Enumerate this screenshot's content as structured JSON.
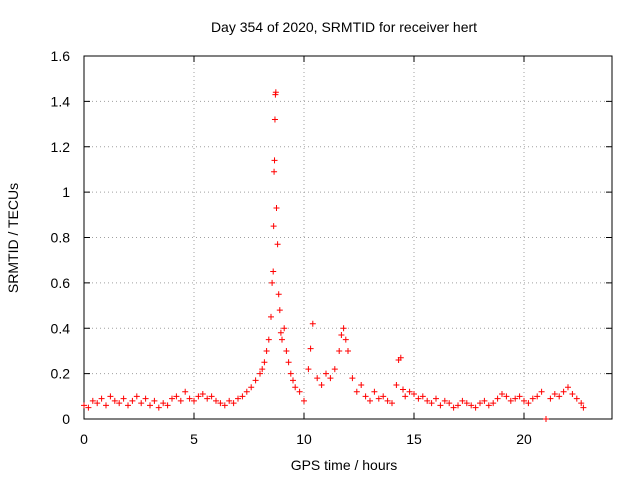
{
  "chart_data": {
    "type": "scatter",
    "title": "Day 354 of 2020, SRMTID for receiver hert",
    "xlabel": "GPS time / hours",
    "ylabel": "SRMTID / TECUs",
    "xlim": [
      0,
      24
    ],
    "ylim": [
      0,
      1.6
    ],
    "x_ticks": [
      "0",
      "5",
      "10",
      "15",
      "20"
    ],
    "y_ticks": [
      "0",
      "0.2",
      "0.4",
      "0.6",
      "0.8",
      "1",
      "1.2",
      "1.4",
      "1.6"
    ],
    "grid": true,
    "marker": "+",
    "colors": {
      "series": "#ff0000",
      "grid": "#a0a0a0",
      "axis": "#000000"
    },
    "series": [
      {
        "name": "SRMTID",
        "x": [
          0.0,
          0.2,
          0.4,
          0.6,
          0.8,
          1.0,
          1.2,
          1.4,
          1.6,
          1.8,
          2.0,
          2.2,
          2.4,
          2.6,
          2.8,
          3.0,
          3.2,
          3.4,
          3.6,
          3.8,
          4.0,
          4.2,
          4.4,
          4.6,
          4.8,
          5.0,
          5.2,
          5.4,
          5.6,
          5.8,
          6.0,
          6.2,
          6.4,
          6.6,
          6.8,
          7.0,
          7.2,
          7.4,
          7.6,
          7.8,
          8.0,
          8.1,
          8.2,
          8.3,
          8.4,
          8.5,
          8.55,
          8.6,
          8.62,
          8.64,
          8.66,
          8.68,
          8.7,
          8.72,
          8.75,
          8.8,
          8.85,
          8.9,
          8.95,
          9.0,
          9.1,
          9.2,
          9.3,
          9.4,
          9.5,
          9.6,
          9.8,
          10.0,
          10.2,
          10.3,
          10.4,
          10.6,
          10.8,
          11.0,
          11.2,
          11.4,
          11.6,
          11.7,
          11.8,
          11.9,
          12.0,
          12.2,
          12.4,
          12.6,
          12.8,
          13.0,
          13.2,
          13.4,
          13.6,
          13.8,
          14.0,
          14.2,
          14.3,
          14.4,
          14.5,
          14.6,
          14.8,
          15.0,
          15.2,
          15.4,
          15.6,
          15.8,
          16.0,
          16.2,
          16.4,
          16.6,
          16.8,
          17.0,
          17.2,
          17.4,
          17.6,
          17.8,
          18.0,
          18.2,
          18.4,
          18.6,
          18.8,
          19.0,
          19.2,
          19.4,
          19.6,
          19.8,
          20.0,
          20.2,
          20.4,
          20.6,
          20.8,
          21.0,
          21.2,
          21.4,
          21.6,
          21.8,
          22.0,
          22.2,
          22.4,
          22.6,
          22.7
        ],
        "y": [
          0.06,
          0.05,
          0.08,
          0.07,
          0.09,
          0.06,
          0.1,
          0.08,
          0.07,
          0.09,
          0.06,
          0.08,
          0.1,
          0.07,
          0.09,
          0.06,
          0.08,
          0.05,
          0.07,
          0.06,
          0.09,
          0.1,
          0.08,
          0.12,
          0.09,
          0.08,
          0.1,
          0.11,
          0.09,
          0.1,
          0.08,
          0.07,
          0.06,
          0.08,
          0.07,
          0.09,
          0.1,
          0.12,
          0.14,
          0.17,
          0.2,
          0.22,
          0.25,
          0.3,
          0.35,
          0.45,
          0.6,
          0.65,
          0.85,
          1.09,
          1.14,
          1.32,
          1.43,
          1.44,
          0.93,
          0.77,
          0.55,
          0.48,
          0.38,
          0.35,
          0.4,
          0.3,
          0.25,
          0.2,
          0.17,
          0.14,
          0.12,
          0.08,
          0.22,
          0.31,
          0.42,
          0.18,
          0.15,
          0.2,
          0.18,
          0.22,
          0.3,
          0.37,
          0.4,
          0.35,
          0.3,
          0.18,
          0.12,
          0.15,
          0.1,
          0.08,
          0.12,
          0.09,
          0.1,
          0.08,
          0.07,
          0.15,
          0.26,
          0.27,
          0.13,
          0.1,
          0.12,
          0.11,
          0.09,
          0.1,
          0.08,
          0.07,
          0.09,
          0.06,
          0.08,
          0.07,
          0.05,
          0.06,
          0.08,
          0.07,
          0.06,
          0.05,
          0.07,
          0.08,
          0.06,
          0.07,
          0.09,
          0.11,
          0.1,
          0.08,
          0.09,
          0.1,
          0.08,
          0.07,
          0.09,
          0.1,
          0.12,
          0.0,
          0.09,
          0.11,
          0.1,
          0.12,
          0.14,
          0.11,
          0.09,
          0.07,
          0.05
        ]
      }
    ]
  }
}
